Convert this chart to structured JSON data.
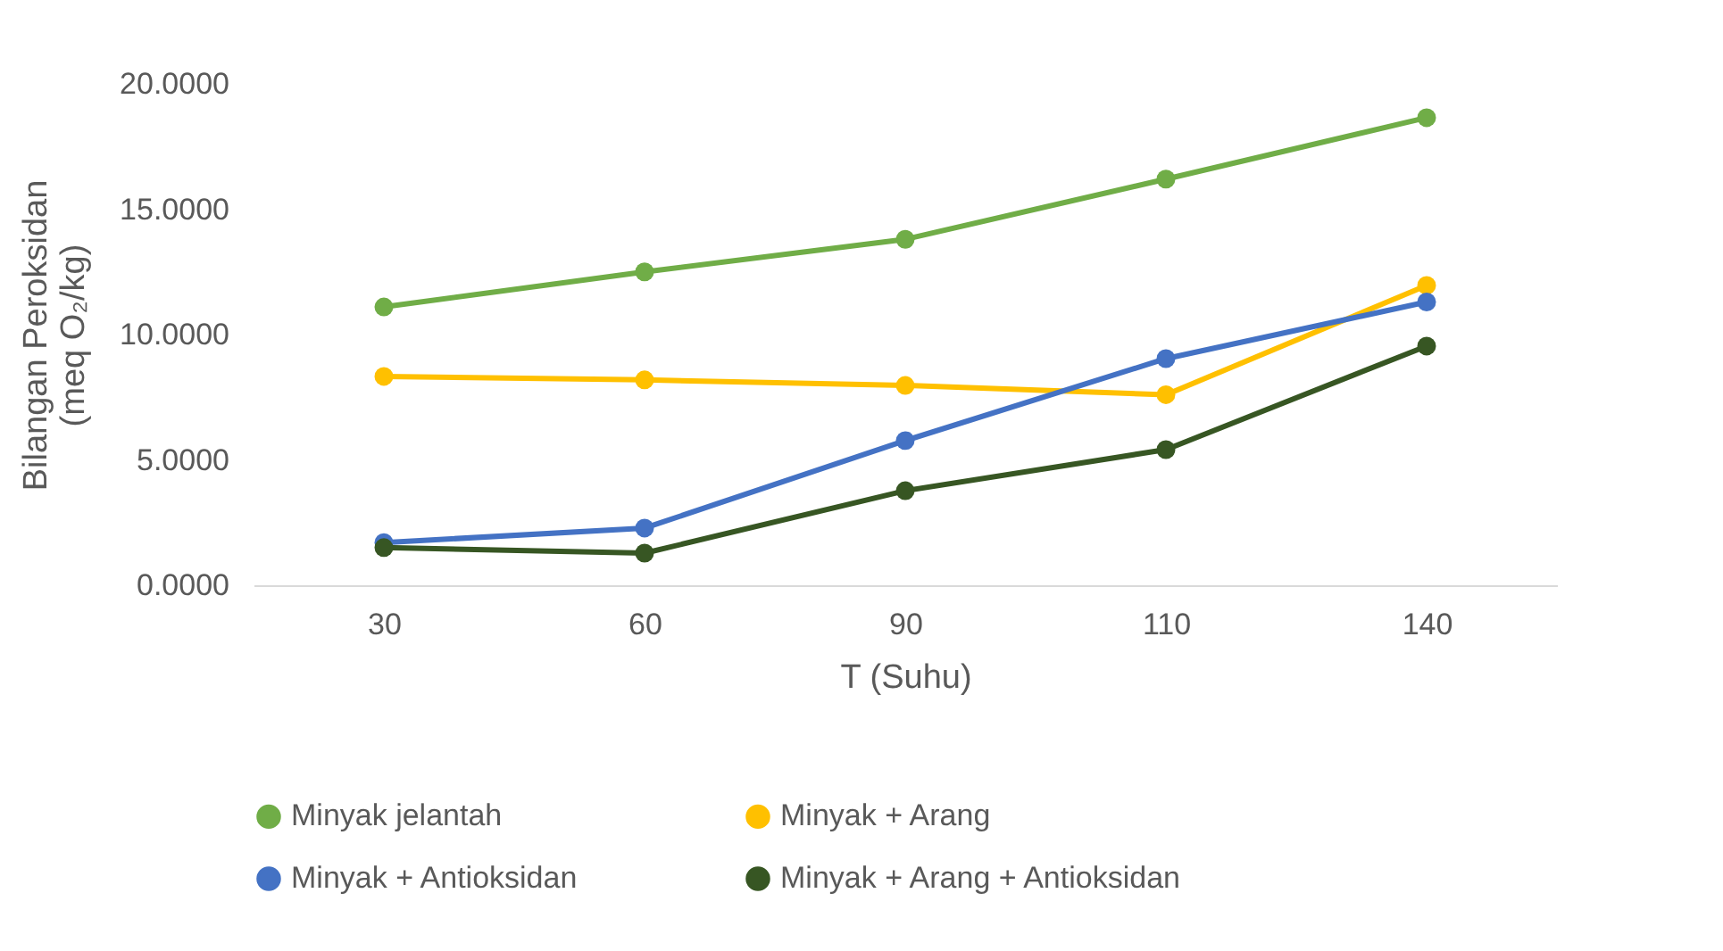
{
  "chart_data": {
    "type": "line",
    "xlabel": "T (Suhu)",
    "ylabel": "Bilangan Peroksidan\n(meq  O₂/kg)",
    "categories": [
      "30",
      "60",
      "90",
      "110",
      "140"
    ],
    "ylim": [
      0,
      20
    ],
    "yticks": [
      {
        "value": 0,
        "label": "0.0000"
      },
      {
        "value": 5,
        "label": "5.0000"
      },
      {
        "value": 10,
        "label": "10.0000"
      },
      {
        "value": 15,
        "label": "15.0000"
      },
      {
        "value": 20,
        "label": "20.0000"
      }
    ],
    "grid": false,
    "legend": "bottom",
    "marker": "circle",
    "series": [
      {
        "name": "Minyak jelantah",
        "color": "#70ad47",
        "values": [
          11.1,
          12.5,
          13.8,
          16.2,
          18.65
        ]
      },
      {
        "name": "Minyak + Arang",
        "color": "#ffc000",
        "values": [
          8.33,
          8.19,
          7.97,
          7.6,
          11.96
        ]
      },
      {
        "name": "Minyak + Antioksidan",
        "color": "#4472c4",
        "values": [
          1.7,
          2.28,
          5.77,
          9.04,
          11.3
        ]
      },
      {
        "name": "Minyak + Arang + Antioksidan",
        "color": "#375623",
        "values": [
          1.5,
          1.28,
          3.77,
          5.41,
          9.54
        ]
      }
    ]
  }
}
